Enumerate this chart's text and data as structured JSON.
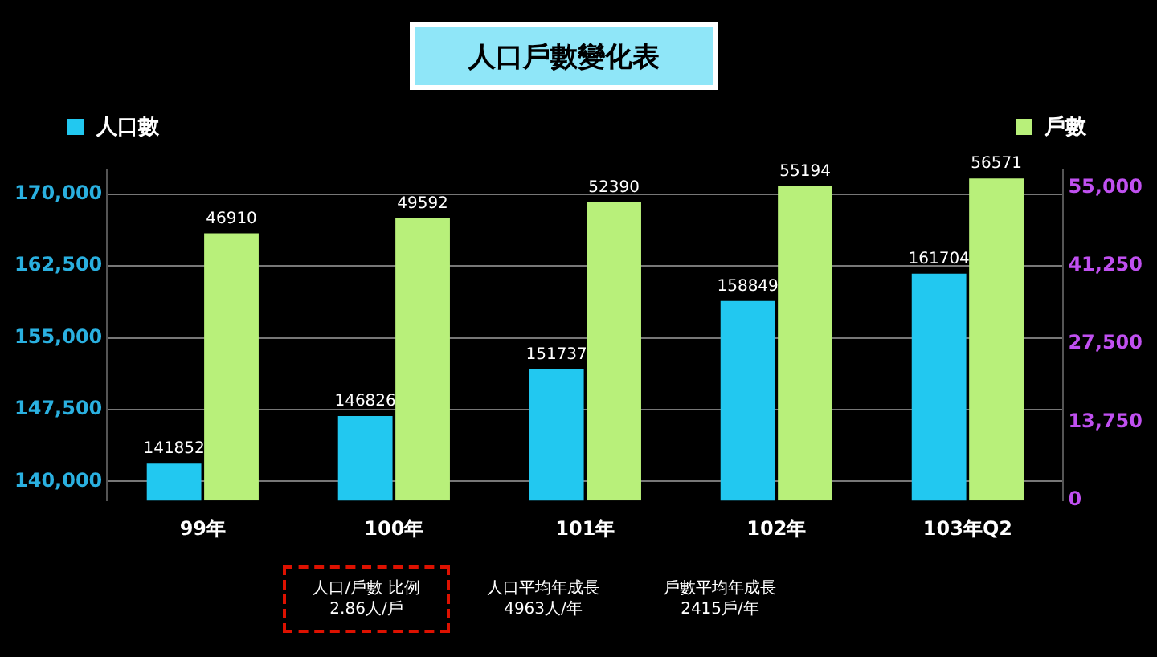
{
  "chart_data": {
    "type": "bar",
    "title": "人口戶數變化表",
    "categories": [
      "99年",
      "100年",
      "101年",
      "102年",
      "103年Q2"
    ],
    "series": [
      {
        "name": "人口數",
        "color": "#22c8f0",
        "values": [
          141852,
          146826,
          151737,
          158849,
          161704
        ]
      },
      {
        "name": "戶數",
        "color": "#b8f07a",
        "values": [
          46910,
          49592,
          52390,
          55194,
          56571
        ],
        "axis": "y2"
      }
    ],
    "ylim": [
      138000,
      172500
    ],
    "yticks": [
      {
        "value": 140000,
        "label": "140,000"
      },
      {
        "value": 147500,
        "label": "147,500"
      },
      {
        "value": 155000,
        "label": "155,000"
      },
      {
        "value": 162500,
        "label": "162,500"
      },
      {
        "value": 170000,
        "label": "170,000"
      }
    ],
    "y2lim": [
      0,
      58000
    ],
    "y2ticks": [
      {
        "value": 0,
        "label": "0"
      },
      {
        "value": 13750,
        "label": "13,750"
      },
      {
        "value": 27500,
        "label": "27,500"
      },
      {
        "value": 41250,
        "label": "41,250"
      },
      {
        "value": 55000,
        "label": "55,000"
      }
    ],
    "grid": "y",
    "legend": "top",
    "data_labels": true,
    "annotations": [
      "人口/戶數 比例\n2.86人/戶",
      "人口平均年成長\n4963人/年",
      "戶數平均年成長\n2415戶/年"
    ]
  }
}
